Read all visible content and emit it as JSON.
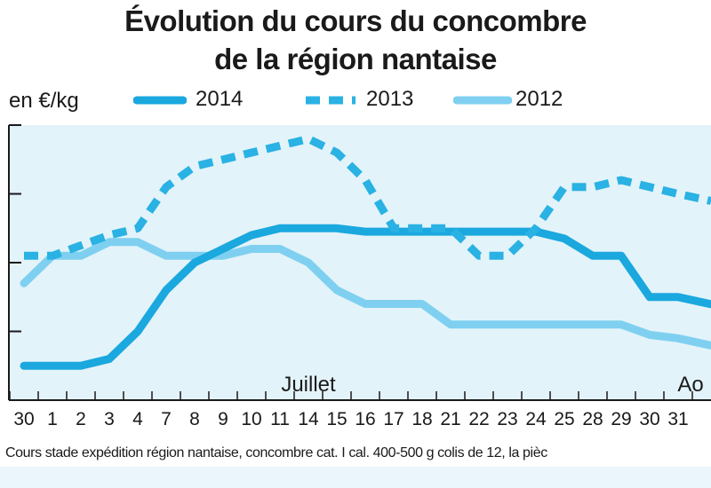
{
  "title": {
    "line1": "Évolution du cours du concombre",
    "line2": "de la région nantaise"
  },
  "unit_label": "en €/kg",
  "footnote": "Cours stade expédition région nantaise, concombre cat. I cal. 400-500 g colis de 12, la pièc",
  "colors": {
    "2014": "#1aa8de",
    "2013": "#29b2e3",
    "2012": "#7fd0f0",
    "plot_bg": "#e3f3fa",
    "axis": "#1a1a1a"
  },
  "chart_data": {
    "type": "line",
    "categories": [
      "30",
      "1",
      "2",
      "3",
      "4",
      "7",
      "8",
      "9",
      "10",
      "11",
      "14",
      "15",
      "16",
      "17",
      "18",
      "21",
      "22",
      "23",
      "24",
      "25",
      "28",
      "29",
      "30",
      "31"
    ],
    "month_labels": [
      {
        "text": "Juillet",
        "category_index": 10
      },
      {
        "text": "Ao",
        "category_index": 23
      }
    ],
    "xlabel": "",
    "ylabel": "en €/kg",
    "y_tick_labels": "not visible",
    "grid": false,
    "legend_position": "top",
    "series": [
      {
        "name": "2014",
        "style": "solid",
        "values": [
          0.1,
          0.1,
          0.1,
          0.12,
          0.2,
          0.32,
          0.4,
          0.44,
          0.48,
          0.5,
          0.5,
          0.5,
          0.49,
          0.49,
          0.49,
          0.49,
          0.49,
          0.49,
          0.49,
          0.47,
          0.42,
          0.42,
          0.3,
          0.3
        ]
      },
      {
        "name": "2013",
        "style": "dashed",
        "values": [
          0.42,
          0.42,
          0.45,
          0.48,
          0.5,
          0.62,
          0.68,
          0.7,
          0.72,
          0.74,
          0.76,
          0.72,
          0.64,
          0.5,
          0.5,
          0.5,
          0.42,
          0.42,
          0.5,
          0.62,
          0.62,
          0.64,
          0.62,
          0.6
        ]
      },
      {
        "name": "2012",
        "style": "solid",
        "values": [
          0.34,
          0.42,
          0.42,
          0.46,
          0.46,
          0.42,
          0.42,
          0.42,
          0.44,
          0.44,
          0.4,
          0.32,
          0.28,
          0.28,
          0.28,
          0.22,
          0.22,
          0.22,
          0.22,
          0.22,
          0.22,
          0.22,
          0.19,
          0.18
        ]
      }
    ]
  }
}
